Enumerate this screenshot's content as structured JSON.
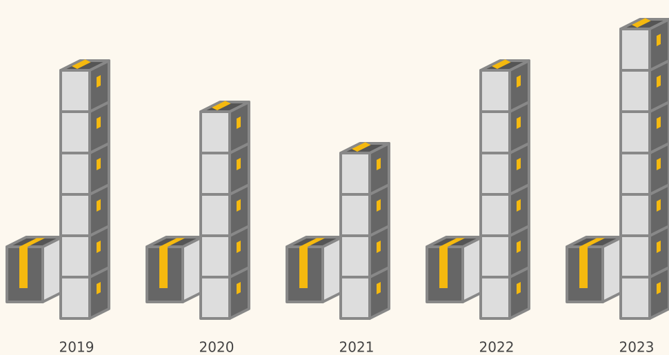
{
  "chart_data": {
    "type": "pictogram",
    "categories": [
      "2019",
      "2020",
      "2021",
      "2022",
      "2023"
    ],
    "values": [
      6,
      5,
      4,
      6,
      7
    ]
  }
}
